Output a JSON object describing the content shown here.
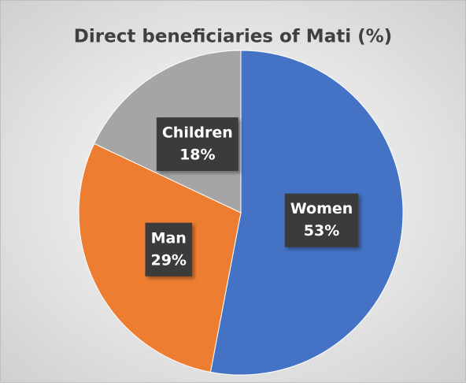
{
  "chart_data": {
    "type": "pie",
    "title": "Direct beneficiaries of Mati (%)",
    "categories": [
      "Women",
      "Man",
      "Children"
    ],
    "values": [
      53,
      29,
      18
    ],
    "value_labels": [
      "53%",
      "29%",
      "18%"
    ],
    "colors": [
      "#4472c4",
      "#ed7d31",
      "#a5a5a5"
    ]
  }
}
